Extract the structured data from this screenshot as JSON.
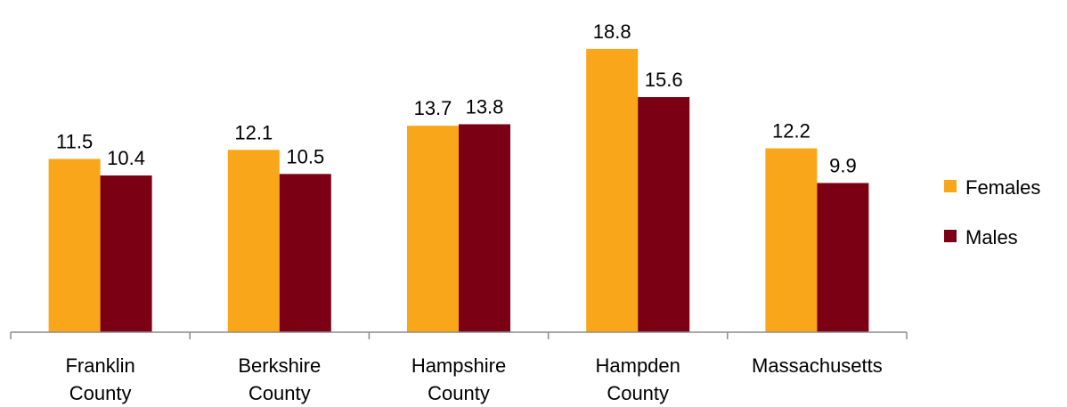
{
  "chart_data": {
    "type": "bar",
    "categories": [
      [
        "Franklin",
        "County"
      ],
      [
        "Berkshire",
        "County"
      ],
      [
        "Hampshire",
        "County"
      ],
      [
        "Hampden",
        "County"
      ],
      [
        "Massachusetts"
      ]
    ],
    "series": [
      {
        "name": "Females",
        "color": "#FAA61A",
        "values": [
          11.5,
          12.1,
          13.7,
          18.8,
          12.2
        ],
        "labels": [
          "11.5",
          "12.1",
          "13.7",
          "18.8",
          "12.2"
        ]
      },
      {
        "name": "Males",
        "color": "#7B0013",
        "values": [
          10.4,
          10.5,
          13.8,
          15.6,
          9.9
        ],
        "labels": [
          "10.4",
          "10.5",
          "13.8",
          "15.6",
          "9.9"
        ]
      }
    ],
    "ylim": [
      0,
      20
    ],
    "grid": false,
    "legend_position": "right"
  }
}
